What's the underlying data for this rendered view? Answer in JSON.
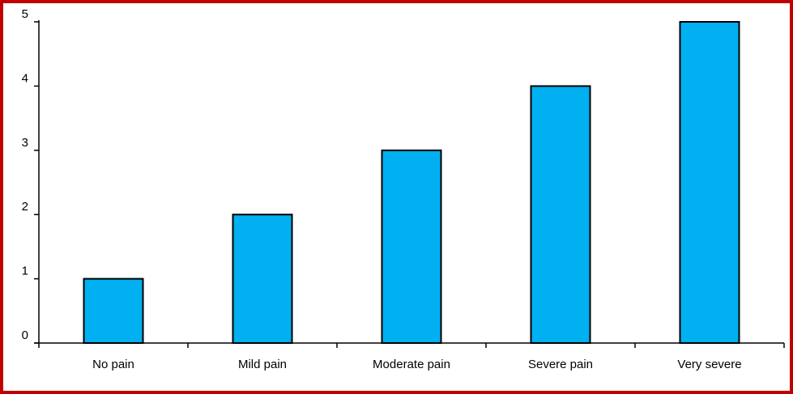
{
  "frame": {
    "border_color": "#c00000"
  },
  "chart_data": {
    "type": "bar",
    "categories": [
      "No pain",
      "Mild pain",
      "Moderate pain",
      "Severe pain",
      "Very severe"
    ],
    "values": [
      1,
      2,
      3,
      4,
      5
    ],
    "y_ticks": [
      "0",
      "1",
      "2",
      "3",
      "4",
      "5"
    ],
    "ylim": [
      0,
      5
    ],
    "grid": false,
    "legend": "none",
    "bar_color": "#00b0f0",
    "bar_edge_color": "#000000"
  }
}
